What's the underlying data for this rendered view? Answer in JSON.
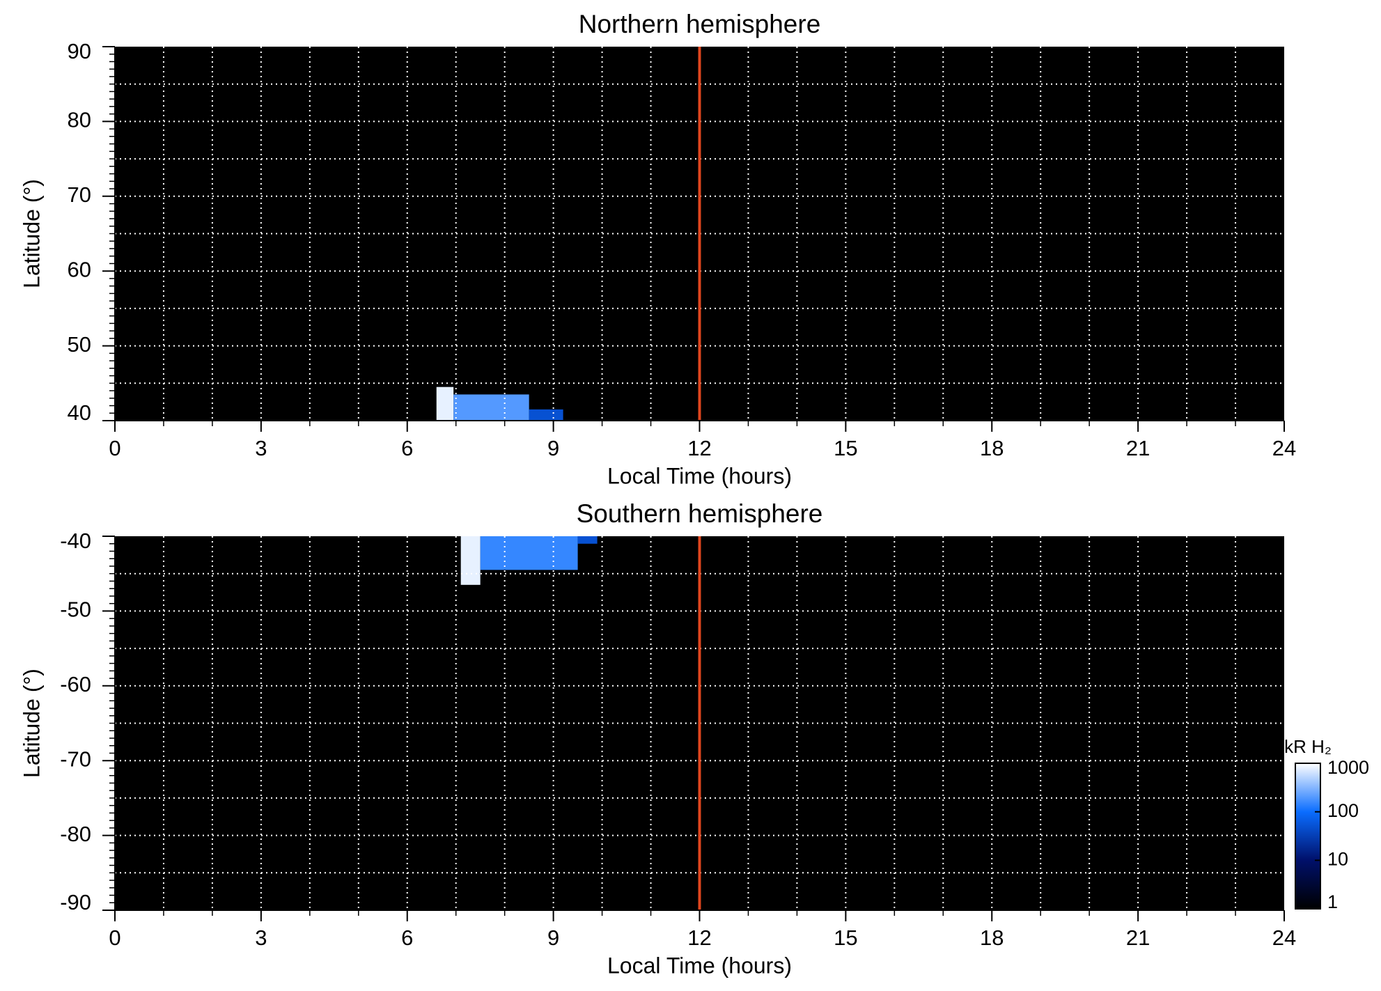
{
  "chart_data": [
    {
      "type": "heatmap",
      "title": "Northern hemisphere",
      "x_label": "Local Time (hours)",
      "y_label": "Latitude (°)",
      "xlim": [
        0,
        24
      ],
      "xticks": [
        0,
        3,
        6,
        9,
        12,
        15,
        18,
        21,
        24
      ],
      "xgrid_step": 1,
      "ylim": [
        40,
        90
      ],
      "yticks": [
        40,
        50,
        60,
        70,
        80,
        90
      ],
      "ygrid_step": 5,
      "yminor_step": 1,
      "background": "#000000",
      "grid_color": "#ffffff",
      "colormap": [
        "#000000",
        "#00106a",
        "#0a6dff",
        "#ffffff"
      ],
      "regions": [
        {
          "x": [
            6.6,
            6.95
          ],
          "y": [
            40,
            44.5
          ],
          "value": 800
        },
        {
          "x": [
            6.95,
            8.5
          ],
          "y": [
            40,
            43.5
          ],
          "value": 200
        },
        {
          "x": [
            8.5,
            9.2
          ],
          "y": [
            40,
            41.5
          ],
          "value": 50
        }
      ],
      "vlines": [
        {
          "x": 12,
          "color": "#e0461e"
        }
      ]
    },
    {
      "type": "heatmap",
      "title": "Southern hemisphere",
      "x_label": "Local Time (hours)",
      "y_label": "Latitude (°)",
      "xlim": [
        0,
        24
      ],
      "xticks": [
        0,
        3,
        6,
        9,
        12,
        15,
        18,
        21,
        24
      ],
      "xgrid_step": 1,
      "ylim": [
        -90,
        -40
      ],
      "yticks": [
        -90,
        -80,
        -70,
        -60,
        -50,
        -40
      ],
      "ygrid_step": 5,
      "yminor_step": 1,
      "background": "#000000",
      "grid_color": "#ffffff",
      "colormap": [
        "#000000",
        "#00106a",
        "#0a6dff",
        "#ffffff"
      ],
      "regions": [
        {
          "x": [
            7.1,
            7.5
          ],
          "y": [
            -46.5,
            -40
          ],
          "value": 800
        },
        {
          "x": [
            7.5,
            9.5
          ],
          "y": [
            -44.5,
            -40
          ],
          "value": 150
        },
        {
          "x": [
            9.5,
            9.9
          ],
          "y": [
            -41,
            -40
          ],
          "value": 50
        }
      ],
      "vlines": [
        {
          "x": 12,
          "color": "#e0461e"
        }
      ],
      "colorbar": {
        "label": "kR H₂",
        "lim": [
          1,
          1000
        ],
        "ticks": [
          1,
          10,
          100,
          1000
        ],
        "log": true
      }
    }
  ]
}
